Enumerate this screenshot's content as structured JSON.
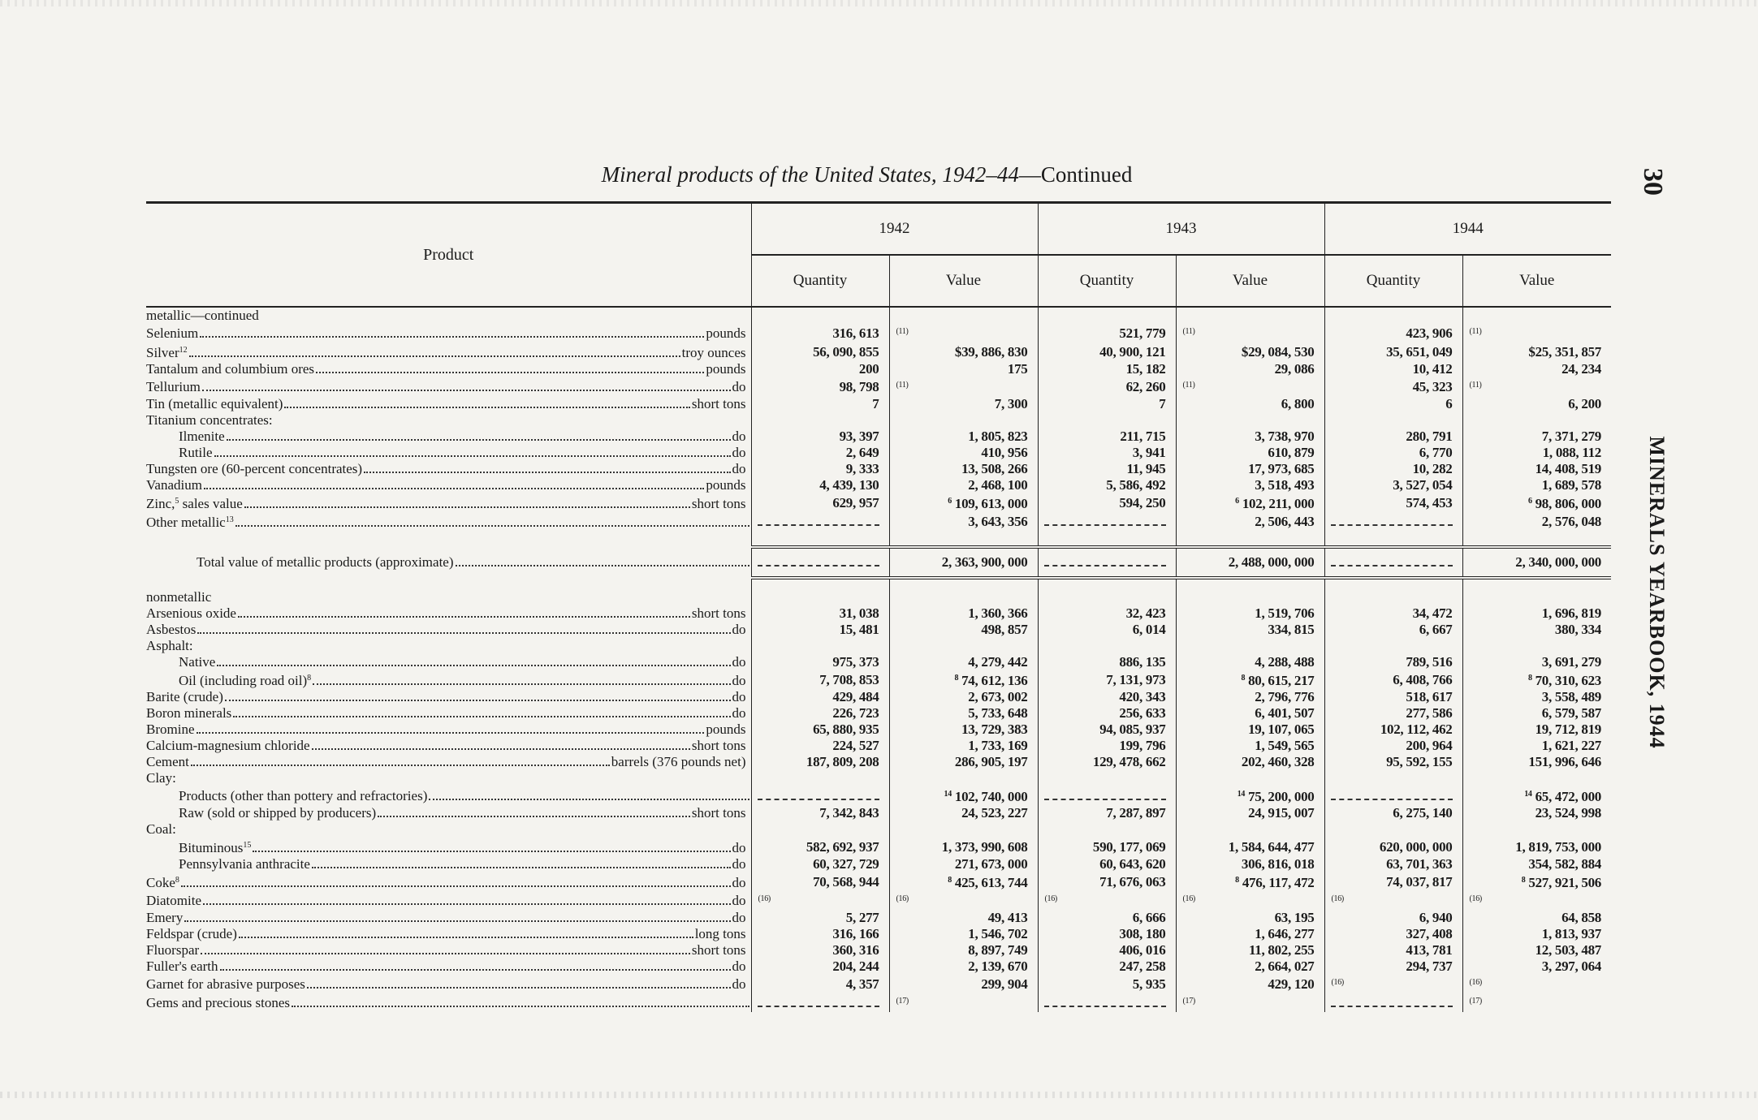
{
  "title": {
    "italic": "Mineral products of the United States, 1942–44",
    "rest": "—Continued"
  },
  "page_number": "30",
  "running_head": "MINERALS YEARBOOK, 1944",
  "header": {
    "product": "Product",
    "years": [
      "1942",
      "1943",
      "1944"
    ],
    "quantity": "Quantity",
    "value": "Value"
  },
  "rows": [
    {
      "type": "section",
      "label": "metallic—continued"
    },
    {
      "label": "Selenium",
      "unit": "pounds",
      "cells": [
        "316, 613",
        "(11)",
        "521, 779",
        "(11)",
        "423, 906",
        "(11)"
      ]
    },
    {
      "label": "Silver",
      "sup": "12",
      "unit": "troy ounces",
      "cells": [
        "56, 090, 855",
        "$39, 886, 830",
        "40, 900, 121",
        "$29, 084, 530",
        "35, 651, 049",
        "$25, 351, 857"
      ]
    },
    {
      "label": "Tantalum and columbium ores",
      "unit": "pounds",
      "cells": [
        "200",
        "175",
        "15, 182",
        "29, 086",
        "10, 412",
        "24, 234"
      ]
    },
    {
      "label": "Tellurium",
      "unit": "do",
      "cells": [
        "98, 798",
        "(11)",
        "62, 260",
        "(11)",
        "45, 323",
        "(11)"
      ]
    },
    {
      "label": "Tin (metallic equivalent)",
      "unit": "short tons",
      "cells": [
        "7",
        "7, 300",
        "7",
        "6, 800",
        "6",
        "6, 200"
      ]
    },
    {
      "type": "heading",
      "label": "Titanium concentrates:"
    },
    {
      "indent": 1,
      "label": "Ilmenite",
      "unit": "do",
      "cells": [
        "93, 397",
        "1, 805, 823",
        "211, 715",
        "3, 738, 970",
        "280, 791",
        "7, 371, 279"
      ]
    },
    {
      "indent": 1,
      "label": "Rutile",
      "unit": "do",
      "cells": [
        "2, 649",
        "410, 956",
        "3, 941",
        "610, 879",
        "6, 770",
        "1, 088, 112"
      ]
    },
    {
      "label": "Tungsten ore (60-percent concentrates)",
      "unit": "do",
      "cells": [
        "9, 333",
        "13, 508, 266",
        "11, 945",
        "17, 973, 685",
        "10, 282",
        "14, 408, 519"
      ]
    },
    {
      "label": "Vanadium",
      "unit": "pounds",
      "cells": [
        "4, 439, 130",
        "2, 468, 100",
        "5, 586, 492",
        "3, 518, 493",
        "3, 527, 054",
        "1, 689, 578"
      ]
    },
    {
      "label": "Zinc,",
      "sup": "5",
      "label2": " sales value",
      "unit": "short tons",
      "cells": [
        "629, 957",
        {
          "n": "6",
          "v": "109, 613, 000"
        },
        "594, 250",
        {
          "n": "6",
          "v": "102, 211, 000"
        },
        "574, 453",
        {
          "n": "6",
          "v": "98, 806, 000"
        }
      ]
    },
    {
      "label": "Other metallic",
      "sup": "13",
      "unit": "",
      "cells": [
        {
          "dash": true
        },
        "3, 643, 356",
        {
          "dash": true
        },
        "2, 506, 443",
        {
          "dash": true
        },
        "2, 576, 048"
      ]
    },
    {
      "type": "total",
      "label": "Total value of metallic products (approximate)",
      "cells": [
        {
          "dash": true
        },
        "2, 363, 900, 000",
        {
          "dash": true
        },
        "2, 488, 000, 000",
        {
          "dash": true
        },
        "2, 340, 000, 000"
      ]
    },
    {
      "type": "section",
      "label": "nonmetallic"
    },
    {
      "label": "Arsenious oxide",
      "unit": "short tons",
      "cells": [
        "31, 038",
        "1, 360, 366",
        "32, 423",
        "1, 519, 706",
        "34, 472",
        "1, 696, 819"
      ]
    },
    {
      "label": "Asbestos",
      "unit": "do",
      "cells": [
        "15, 481",
        "498, 857",
        "6, 014",
        "334, 815",
        "6, 667",
        "380, 334"
      ]
    },
    {
      "type": "heading",
      "label": "Asphalt:"
    },
    {
      "indent": 1,
      "label": "Native",
      "unit": "do",
      "cells": [
        "975, 373",
        "4, 279, 442",
        "886, 135",
        "4, 288, 488",
        "789, 516",
        "3, 691, 279"
      ]
    },
    {
      "indent": 1,
      "label": "Oil (including road oil)",
      "sup": "8",
      "unit": "do",
      "cells": [
        "7, 708, 853",
        {
          "n": "8",
          "v": "74, 612, 136"
        },
        "7, 131, 973",
        {
          "n": "8",
          "v": "80, 615, 217"
        },
        "6, 408, 766",
        {
          "n": "8",
          "v": "70, 310, 623"
        }
      ]
    },
    {
      "label": "Barite (crude)",
      "unit": "do",
      "cells": [
        "429, 484",
        "2, 673, 002",
        "420, 343",
        "2, 796, 776",
        "518, 617",
        "3, 558, 489"
      ]
    },
    {
      "label": "Boron minerals",
      "unit": "do",
      "cells": [
        "226, 723",
        "5, 733, 648",
        "256, 633",
        "6, 401, 507",
        "277, 586",
        "6, 579, 587"
      ]
    },
    {
      "label": "Bromine",
      "unit": "pounds",
      "cells": [
        "65, 880, 935",
        "13, 729, 383",
        "94, 085, 937",
        "19, 107, 065",
        "102, 112, 462",
        "19, 712, 819"
      ]
    },
    {
      "label": "Calcium-magnesium chloride",
      "unit": "short tons",
      "cells": [
        "224, 527",
        "1, 733, 169",
        "199, 796",
        "1, 549, 565",
        "200, 964",
        "1, 621, 227"
      ]
    },
    {
      "label": "Cement",
      "unit": "barrels (376 pounds net)",
      "cells": [
        "187, 809, 208",
        "286, 905, 197",
        "129, 478, 662",
        "202, 460, 328",
        "95, 592, 155",
        "151, 996, 646"
      ]
    },
    {
      "type": "heading",
      "label": "Clay:"
    },
    {
      "indent": 1,
      "label": "Products (other than pottery and refractories)",
      "unit": "",
      "cells": [
        {
          "dash": true
        },
        {
          "n": "14",
          "v": "102, 740, 000"
        },
        {
          "dash": true
        },
        {
          "n": "14",
          "v": "75, 200, 000"
        },
        {
          "dash": true
        },
        {
          "n": "14",
          "v": "65, 472, 000"
        }
      ]
    },
    {
      "indent": 1,
      "label": "Raw (sold or shipped by producers)",
      "unit": "short tons",
      "cells": [
        "7, 342, 843",
        "24, 523, 227",
        "7, 287, 897",
        "24, 915, 007",
        "6, 275, 140",
        "23, 524, 998"
      ]
    },
    {
      "type": "heading",
      "label": "Coal:"
    },
    {
      "indent": 1,
      "label": "Bituminous",
      "sup": "15",
      "unit": "do",
      "cells": [
        "582, 692, 937",
        "1, 373, 990, 608",
        "590, 177, 069",
        "1, 584, 644, 477",
        "620, 000, 000",
        "1, 819, 753, 000"
      ]
    },
    {
      "indent": 1,
      "label": "Pennsylvania anthracite",
      "unit": "do",
      "cells": [
        "60, 327, 729",
        "271, 673, 000",
        "60, 643, 620",
        "306, 816, 018",
        "63, 701, 363",
        "354, 582, 884"
      ]
    },
    {
      "label": "Coke",
      "sup": "8",
      "unit": "do",
      "cells": [
        "70, 568, 944",
        {
          "n": "8",
          "v": "425, 613, 744"
        },
        "71, 676, 063",
        {
          "n": "8",
          "v": "476, 117, 472"
        },
        "74, 037, 817",
        {
          "n": "8",
          "v": "527, 921, 506"
        }
      ]
    },
    {
      "label": "Diatomite",
      "unit": "do",
      "cells": [
        "(16)",
        "(16)",
        "(16)",
        "(16)",
        "(16)",
        "(16)"
      ]
    },
    {
      "label": "Emery",
      "unit": "do",
      "cells": [
        "5, 277",
        "49, 413",
        "6, 666",
        "63, 195",
        "6, 940",
        "64, 858"
      ]
    },
    {
      "label": "Feldspar (crude)",
      "unit": "long tons",
      "cells": [
        "316, 166",
        "1, 546, 702",
        "308, 180",
        "1, 646, 277",
        "327, 408",
        "1, 813, 937"
      ]
    },
    {
      "label": "Fluorspar",
      "unit": "short tons",
      "cells": [
        "360, 316",
        "8, 897, 749",
        "406, 016",
        "11, 802, 255",
        "413, 781",
        "12, 503, 487"
      ]
    },
    {
      "label": "Fuller's earth",
      "unit": "do",
      "cells": [
        "204, 244",
        "2, 139, 670",
        "247, 258",
        "2, 664, 027",
        "294, 737",
        "3, 297, 064"
      ]
    },
    {
      "label": "Garnet for abrasive purposes",
      "unit": "do",
      "cells": [
        "4, 357",
        "299, 904",
        "5, 935",
        "429, 120",
        "(16)",
        "(16)"
      ]
    },
    {
      "label": "Gems and precious stones",
      "unit": "",
      "cells": [
        {
          "dash": true
        },
        "(17)",
        {
          "dash": true
        },
        "(17)",
        {
          "dash": true
        },
        "(17)"
      ]
    }
  ]
}
